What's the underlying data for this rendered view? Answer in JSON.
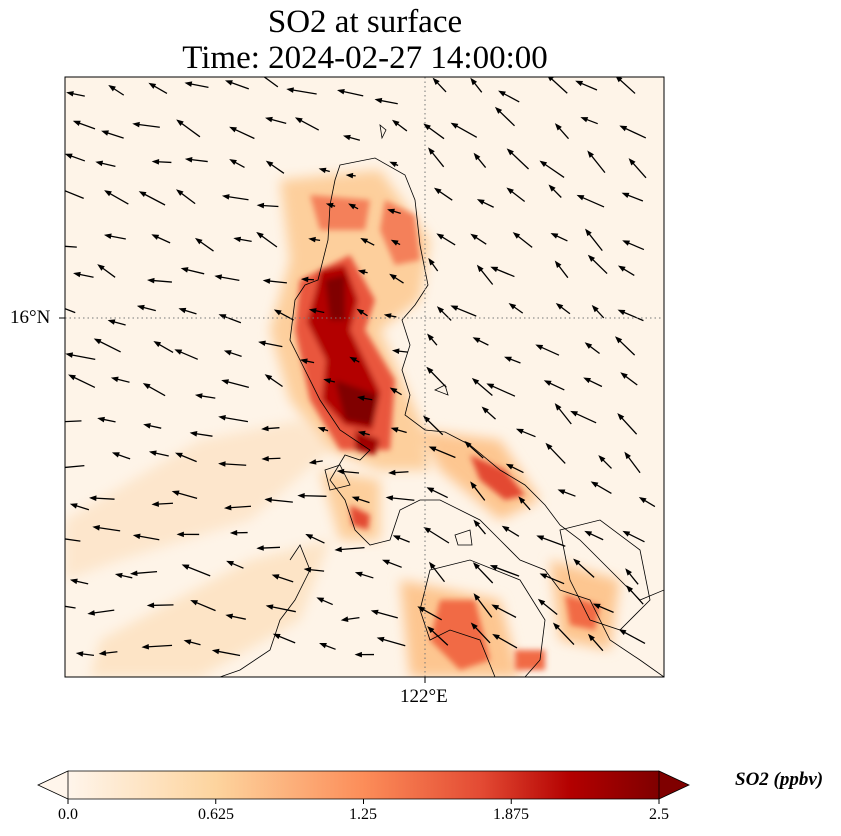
{
  "title": {
    "line1": "SO2 at surface",
    "line2": "Time: 2024-02-27 14:00:00"
  },
  "axes": {
    "lon_label": "122°E",
    "lat_label": "16°N"
  },
  "colorbar": {
    "label": "SO2 (ppbv)",
    "ticks": [
      "0.0",
      "0.625",
      "1.25",
      "1.875",
      "2.5"
    ],
    "range": [
      0,
      2.5
    ],
    "extend": "both",
    "colors": [
      "#fff5eb",
      "#fdd49e",
      "#fc8d59",
      "#e34a33",
      "#b30000",
      "#7f0000"
    ]
  },
  "chart_data": {
    "type": "heatmap",
    "title": "SO2 at surface\nTime: 2024-02-27 14:00:00",
    "variable": "SO2 (ppbv)",
    "xlabel_ticks": [
      "122°E"
    ],
    "ylabel_ticks": [
      "16°N"
    ],
    "colorbar_range": [
      0,
      2.5
    ],
    "overlay": "wind vectors, coastlines, dotted gridlines"
  }
}
